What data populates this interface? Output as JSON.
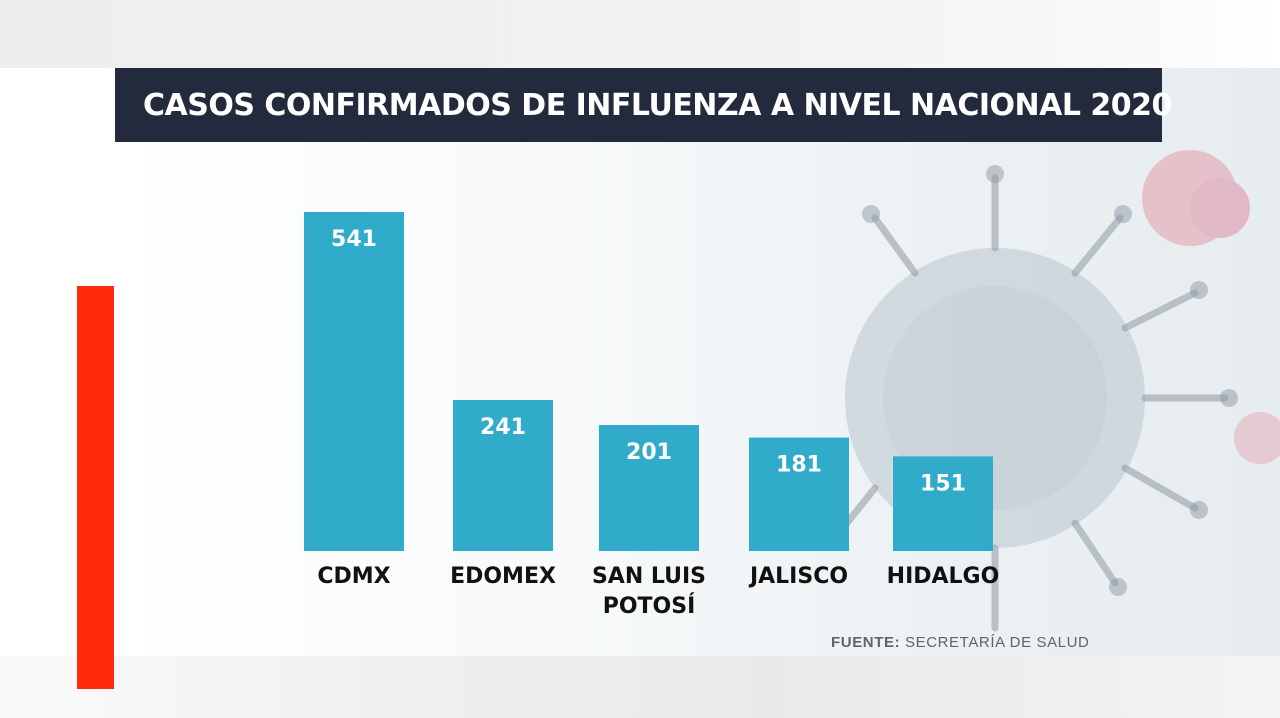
{
  "header": {
    "title": "CASOS CONFIRMADOS DE INFLUENZA A NIVEL NACIONAL 2020"
  },
  "source": {
    "label": "FUENTE:",
    "text": "SECRETARÍA DE SALUD"
  },
  "colors": {
    "bar": "#30abca",
    "title_bg": "#232a3d",
    "accent": "#ff2a0a"
  },
  "chart_data": {
    "type": "bar",
    "title": "CASOS CONFIRMADOS DE INFLUENZA A NIVEL NACIONAL 2020",
    "categories": [
      [
        "CDMX"
      ],
      [
        "EDOMEX"
      ],
      [
        "SAN LUIS",
        "POTOSÍ"
      ],
      [
        "JALISCO"
      ],
      [
        "HIDALGO"
      ]
    ],
    "values": [
      541,
      241,
      201,
      181,
      151
    ],
    "data_labels": [
      "541",
      "241",
      "201",
      "181",
      "151"
    ],
    "xlabel": "",
    "ylabel": "",
    "grid": false,
    "legend": "none"
  }
}
